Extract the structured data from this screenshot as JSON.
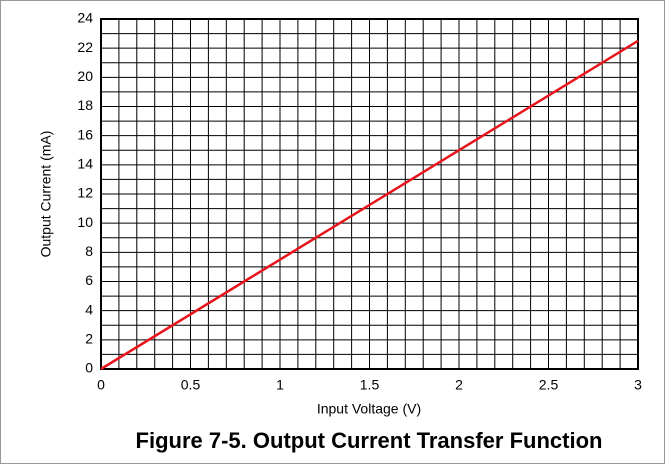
{
  "chart_data": {
    "type": "line",
    "title": "Figure 7-5. Output Current Transfer Function",
    "xlabel": "Input Voltage (V)",
    "ylabel": "Output Current (mA)",
    "x": [
      0,
      3
    ],
    "series": [
      {
        "name": "Output Current",
        "color": "#e8141b",
        "values": [
          0,
          22.5
        ]
      }
    ],
    "xlim": [
      0,
      3
    ],
    "xticks": [
      0,
      0.5,
      1,
      1.5,
      2,
      2.5,
      3
    ],
    "ylim": [
      0,
      24
    ],
    "yticks": [
      0,
      2,
      4,
      6,
      8,
      10,
      12,
      14,
      16,
      18,
      20,
      22,
      24
    ],
    "xgrid": [
      0,
      0.1,
      0.2,
      0.3,
      0.4,
      0.5,
      0.6,
      0.7,
      0.8,
      0.9,
      1,
      1.1,
      1.2,
      1.3,
      1.4,
      1.5,
      1.6,
      1.7,
      1.8,
      1.9,
      2,
      2.1,
      2.2,
      2.3,
      2.4,
      2.5,
      2.6,
      2.7,
      2.8,
      2.9,
      3
    ],
    "ygrid": [
      0,
      1,
      2,
      3,
      4,
      5,
      6,
      7,
      8,
      9,
      10,
      11,
      12,
      13,
      14,
      15,
      16,
      17,
      18,
      19,
      20,
      21,
      22,
      23,
      24
    ],
    "grid": true
  }
}
